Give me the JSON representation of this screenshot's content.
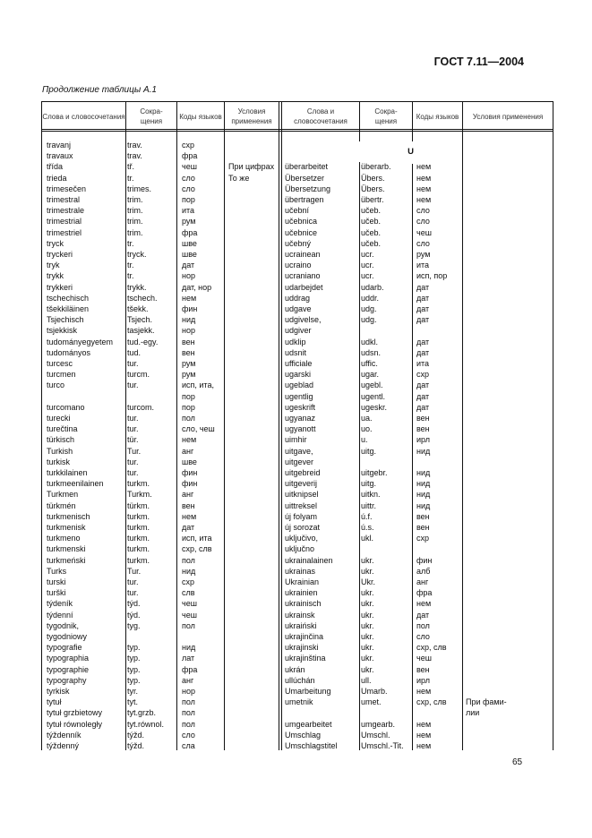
{
  "header": {
    "doc_code": "ГОСТ 7.11—2004"
  },
  "caption": "Продолжение таблицы А.1",
  "columns": [
    "Слова и словосочетания",
    "Сокра-\nщения",
    "Коды языков",
    "Условия применения"
  ],
  "section_letter": "U",
  "left_rows": [
    [
      "travanj",
      "trav.",
      "схр",
      ""
    ],
    [
      "travaux",
      "trav.",
      "фра",
      ""
    ],
    [
      "třída",
      "tř.",
      "чеш",
      "При цифрах"
    ],
    [
      "trieda",
      "tr.",
      "сло",
      "То же"
    ],
    [
      "trimesečen",
      "trimes.",
      "сло",
      ""
    ],
    [
      "trimestral",
      "trim.",
      "пор",
      ""
    ],
    [
      "trimestrale",
      "trim.",
      "ита",
      ""
    ],
    [
      "trimestrial",
      "trim.",
      "рум",
      ""
    ],
    [
      "trimestriel",
      "trim.",
      "фра",
      ""
    ],
    [
      "tryck",
      "tr.",
      "шве",
      ""
    ],
    [
      "tryckeri",
      "tryck.",
      "шве",
      ""
    ],
    [
      "tryk",
      "tr.",
      "дат",
      ""
    ],
    [
      "trykk",
      "tr.",
      "нор",
      ""
    ],
    [
      "trykkeri",
      "trykk.",
      "дат, нор",
      ""
    ],
    [
      "tschechisch",
      "tschech.",
      "нем",
      ""
    ],
    [
      "tšekkiläinen",
      "tšekk.",
      "фин",
      ""
    ],
    [
      "Tsjechisch",
      "Tsjech.",
      "нид",
      ""
    ],
    [
      "tsjekkisk",
      "tasjekk.",
      "нор",
      ""
    ],
    [
      "tudományegyetem",
      "tud.-egy.",
      "вен",
      ""
    ],
    [
      "tudományos",
      "tud.",
      "вен",
      ""
    ],
    [
      "turcesc",
      "tur.",
      "рум",
      ""
    ],
    [
      "turcmen",
      "turcm.",
      "рум",
      ""
    ],
    [
      "turco",
      "tur.",
      "исп, ита,",
      ""
    ],
    [
      "",
      "",
      "пор",
      ""
    ],
    [
      "turcomano",
      "turcom.",
      "пор",
      ""
    ],
    [
      "turecki",
      "tur.",
      "пол",
      ""
    ],
    [
      "turečtina",
      "tur.",
      "сло, чеш",
      ""
    ],
    [
      "türkisch",
      "tür.",
      "нем",
      ""
    ],
    [
      "Turkish",
      "Tur.",
      "анг",
      ""
    ],
    [
      "turkisk",
      "tur.",
      "шве",
      ""
    ],
    [
      "turkkilainen",
      "tur.",
      "фин",
      ""
    ],
    [
      "turkmeenilainen",
      "turkm.",
      "фин",
      ""
    ],
    [
      "Turkmen",
      "Turkm.",
      "анг",
      ""
    ],
    [
      "türkmén",
      "türkm.",
      "вен",
      ""
    ],
    [
      "turkmenisch",
      "turkm.",
      "нем",
      ""
    ],
    [
      "turkmenisk",
      "turkm.",
      "дат",
      ""
    ],
    [
      "turkmeno",
      "turkm.",
      "исп, ита",
      ""
    ],
    [
      "turkmenski",
      "turkm.",
      "схр, слв",
      ""
    ],
    [
      "turkmeński",
      "turkm.",
      "пол",
      ""
    ],
    [
      "Turks",
      "Tur.",
      "нид",
      ""
    ],
    [
      "turski",
      "tur.",
      "схр",
      ""
    ],
    [
      "turški",
      "tur.",
      "слв",
      ""
    ],
    [
      "týdeník",
      "týd.",
      "чеш",
      ""
    ],
    [
      "týdenní",
      "týd.",
      "чеш",
      ""
    ],
    [
      "tygodnik,",
      "tyg.",
      "пол",
      ""
    ],
    [
      "tygodniowy",
      "",
      "",
      ""
    ],
    [
      "typografie",
      "typ.",
      "нид",
      ""
    ],
    [
      "typographia",
      "typ.",
      "лат",
      ""
    ],
    [
      "typographie",
      "typ.",
      "фра",
      ""
    ],
    [
      "typography",
      "typ.",
      "анг",
      ""
    ],
    [
      "tyrkisk",
      "tyr.",
      "нор",
      ""
    ],
    [
      "tytuł",
      "tyt.",
      "пол",
      ""
    ],
    [
      "tytuł grzbietowy",
      "tyt.grzb.",
      "пол",
      ""
    ],
    [
      "tytuł równoległy",
      "tyt.równol.",
      "пол",
      ""
    ],
    [
      "týždenník",
      "týžd.",
      "сло",
      ""
    ],
    [
      "týždenný",
      "týžd.",
      "сла",
      ""
    ]
  ],
  "right_rows": [
    [
      "überarbeitet",
      "überarb.",
      "нем",
      ""
    ],
    [
      "Übersetzer",
      "Übers.",
      "нем",
      ""
    ],
    [
      "Übersetzung",
      "Übers.",
      "нем",
      ""
    ],
    [
      "übertragen",
      "übertr.",
      "нем",
      ""
    ],
    [
      "učební",
      "učeb.",
      "сло",
      ""
    ],
    [
      "učebnica",
      "učeb.",
      "сло",
      ""
    ],
    [
      "učebnice",
      "učeb.",
      "чеш",
      ""
    ],
    [
      "učebný",
      "učeb.",
      "сло",
      ""
    ],
    [
      "ucrainean",
      "ucr.",
      "рум",
      ""
    ],
    [
      "ucraino",
      "ucr.",
      "ита",
      ""
    ],
    [
      "ucraniano",
      "ucr.",
      "исп, пор",
      ""
    ],
    [
      "udarbejdet",
      "udarb.",
      "дат",
      ""
    ],
    [
      "uddrag",
      "uddr.",
      "дат",
      ""
    ],
    [
      "udgave",
      "udg.",
      "дат",
      ""
    ],
    [
      "udgivelse,",
      "udg.",
      "дат",
      ""
    ],
    [
      "udgiver",
      "",
      "",
      ""
    ],
    [
      "udklip",
      "udkl.",
      "дат",
      ""
    ],
    [
      "udsnit",
      "udsn.",
      "дат",
      ""
    ],
    [
      "ufficiale",
      "uffic.",
      "ита",
      ""
    ],
    [
      "ugarski",
      "ugar.",
      "схр",
      ""
    ],
    [
      "ugeblad",
      "ugebl.",
      "дат",
      ""
    ],
    [
      "ugentlig",
      "ugentl.",
      "дат",
      ""
    ],
    [
      "ugeskrift",
      "ugeskr.",
      "дат",
      ""
    ],
    [
      "ugyanaz",
      "ua.",
      "вен",
      ""
    ],
    [
      "ugyanott",
      "uo.",
      "вен",
      ""
    ],
    [
      "uimhir",
      "u.",
      "ирл",
      ""
    ],
    [
      "uitgave,",
      "uitg.",
      "нид",
      ""
    ],
    [
      "uitgever",
      "",
      "",
      ""
    ],
    [
      "uitgebreid",
      "uitgebr.",
      "нид",
      ""
    ],
    [
      "uitgeverij",
      "uitg.",
      "нид",
      ""
    ],
    [
      "uitknipsel",
      "uitkn.",
      "нид",
      ""
    ],
    [
      "uittreksel",
      "uittr.",
      "нид",
      ""
    ],
    [
      "új folyam",
      "ú.f.",
      "вен",
      ""
    ],
    [
      "új sorozat",
      "ú.s.",
      "вен",
      ""
    ],
    [
      "uključivo,",
      "ukl.",
      "схр",
      ""
    ],
    [
      "uključno",
      "",
      "",
      ""
    ],
    [
      "ukrainalainen",
      "ukr.",
      "фин",
      ""
    ],
    [
      "ukrainas",
      "ukr.",
      "алб",
      ""
    ],
    [
      "Ukrainian",
      "Ukr.",
      "анг",
      ""
    ],
    [
      "ukrainien",
      "ukr.",
      "фра",
      ""
    ],
    [
      "ukrainisch",
      "ukr.",
      "нем",
      ""
    ],
    [
      "ukrainsk",
      "ukr.",
      "дат",
      ""
    ],
    [
      "ukraiński",
      "ukr.",
      "пол",
      ""
    ],
    [
      "ukrajinčina",
      "ukr.",
      "сло",
      ""
    ],
    [
      "ukrajinski",
      "ukr.",
      "схр, слв",
      ""
    ],
    [
      "ukrajinština",
      "ukr.",
      "чеш",
      ""
    ],
    [
      "ukrán",
      "ukr.",
      "вен",
      ""
    ],
    [
      "ullúchán",
      "ull.",
      "ирл",
      ""
    ],
    [
      "Umarbeitung",
      "Umarb.",
      "нем",
      ""
    ],
    [
      "umetnik",
      "umet.",
      "схр, слв",
      "При фами-"
    ],
    [
      "",
      "",
      "",
      "лии"
    ],
    [
      "umgearbeitet",
      "umgearb.",
      "нем",
      ""
    ],
    [
      "Umschlag",
      "Umschl.",
      "нем",
      ""
    ],
    [
      "Umschlagstitel",
      "Umschl.-Tit.",
      "нем",
      ""
    ]
  ],
  "page_number": "65"
}
